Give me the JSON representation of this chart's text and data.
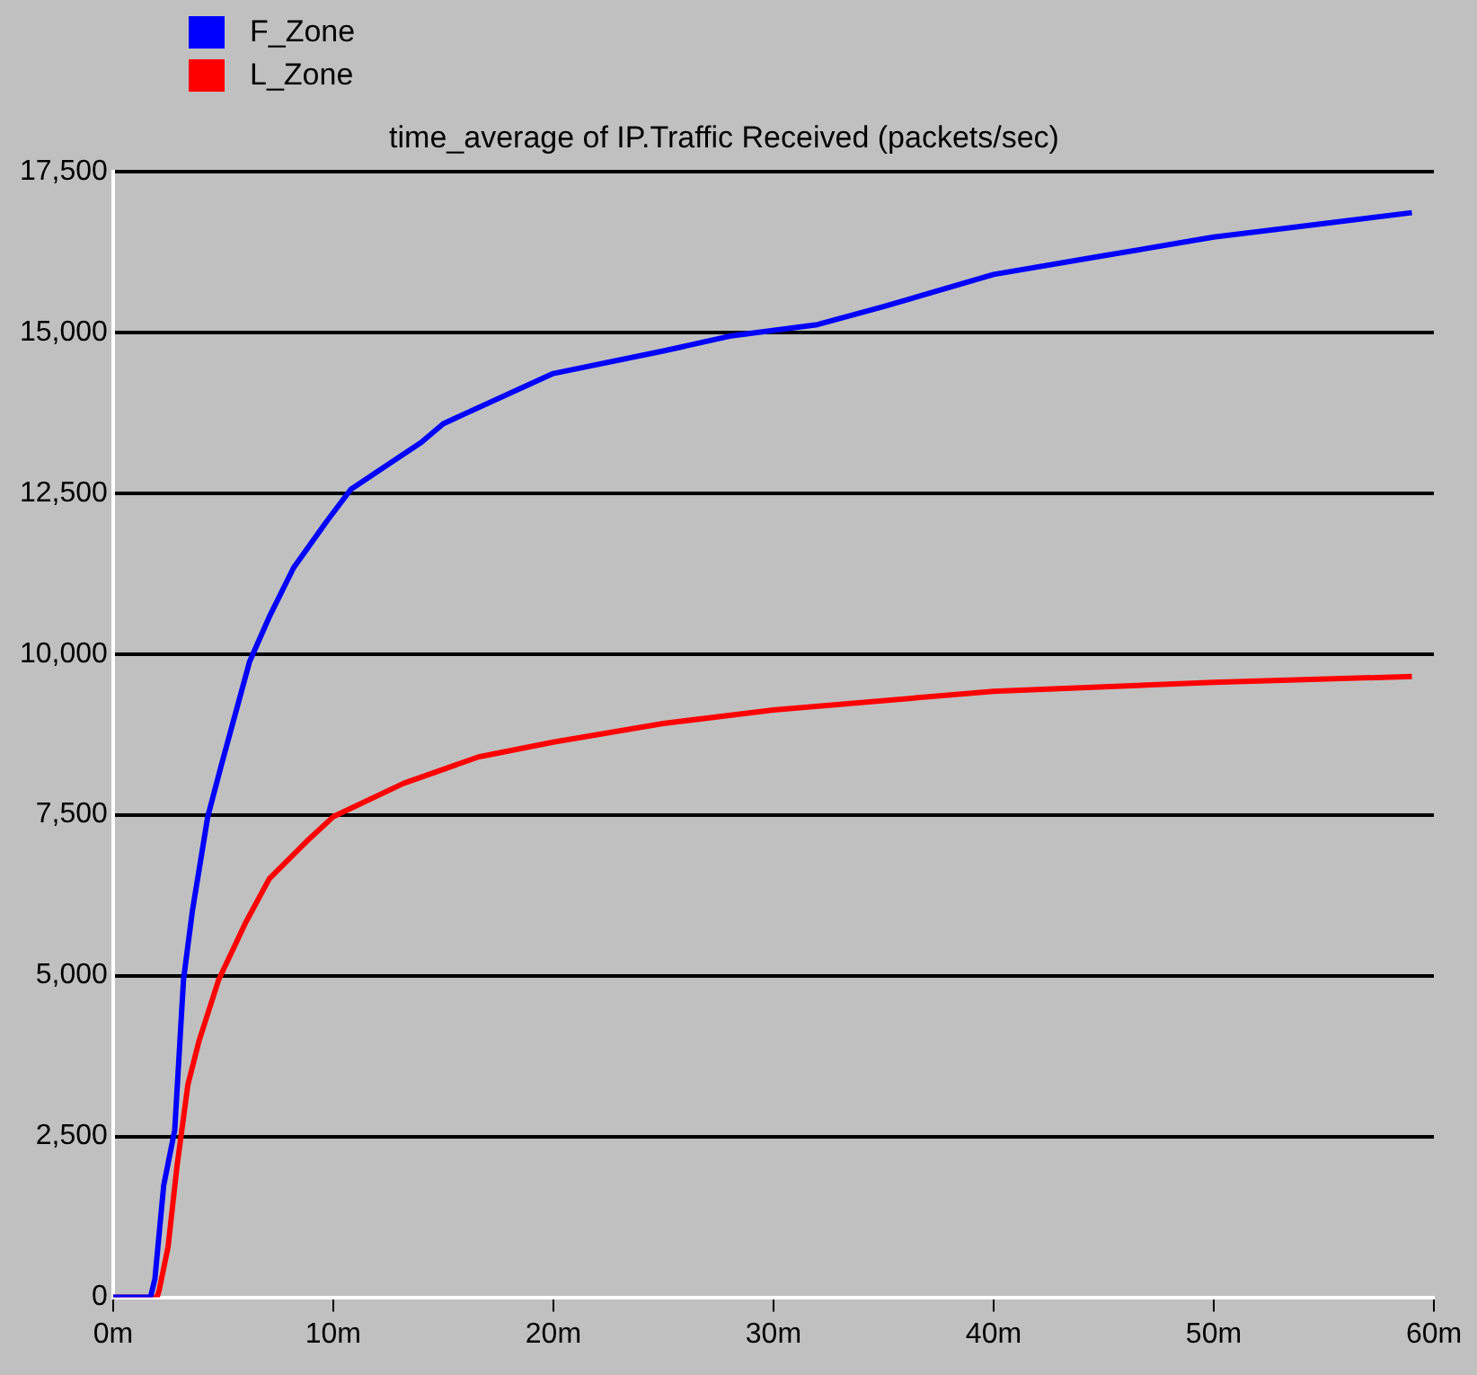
{
  "chart_data": {
    "type": "line",
    "title": "time_average of IP.Traffic Received (packets/sec)",
    "xlim": [
      0,
      60
    ],
    "xticks": [
      {
        "value": 0,
        "label": "0m"
      },
      {
        "value": 10,
        "label": "10m"
      },
      {
        "value": 20,
        "label": "20m"
      },
      {
        "value": 30,
        "label": "30m"
      },
      {
        "value": 40,
        "label": "40m"
      },
      {
        "value": 50,
        "label": "50m"
      },
      {
        "value": 60,
        "label": "60m"
      }
    ],
    "ylim": [
      0,
      17500
    ],
    "yticks": [
      {
        "value": 0,
        "label": "0"
      },
      {
        "value": 2500,
        "label": "2,500"
      },
      {
        "value": 5000,
        "label": "5,000"
      },
      {
        "value": 7500,
        "label": "7,500"
      },
      {
        "value": 10000,
        "label": "10,000"
      },
      {
        "value": 12500,
        "label": "12,500"
      },
      {
        "value": 15000,
        "label": "15,000"
      },
      {
        "value": 17500,
        "label": "17,500"
      }
    ],
    "grid": "y",
    "legend": "top left",
    "marker": "none",
    "line_style": "solid",
    "series": [
      {
        "name": "F_Zone",
        "color": "#0000ff",
        "x": [
          0,
          1.7,
          1.9,
          2.3,
          2.8,
          3.2,
          3.6,
          4.3,
          4.9,
          6.2,
          7.1,
          8.2,
          9.7,
          10.8,
          14,
          15,
          20,
          25,
          28,
          32,
          35,
          40,
          45,
          50,
          55,
          59
        ],
        "values": [
          0,
          0,
          290,
          1740,
          2600,
          4940,
          6000,
          7470,
          8250,
          9880,
          10580,
          11340,
          12060,
          12560,
          13290,
          13580,
          14360,
          14710,
          14940,
          15120,
          15400,
          15900,
          16190,
          16480,
          16690,
          16860
        ]
      },
      {
        "name": "L_Zone",
        "color": "#ff0000",
        "x": [
          0,
          2,
          2.1,
          2.5,
          2.9,
          3.4,
          3.9,
          4.8,
          6,
          7.1,
          8.8,
          10,
          13.2,
          16.6,
          20,
          25,
          30,
          40,
          50,
          59
        ],
        "values": [
          0,
          0,
          120,
          790,
          2030,
          3310,
          3980,
          4940,
          5810,
          6510,
          7090,
          7470,
          7990,
          8400,
          8630,
          8920,
          9130,
          9420,
          9560,
          9650
        ]
      }
    ]
  }
}
